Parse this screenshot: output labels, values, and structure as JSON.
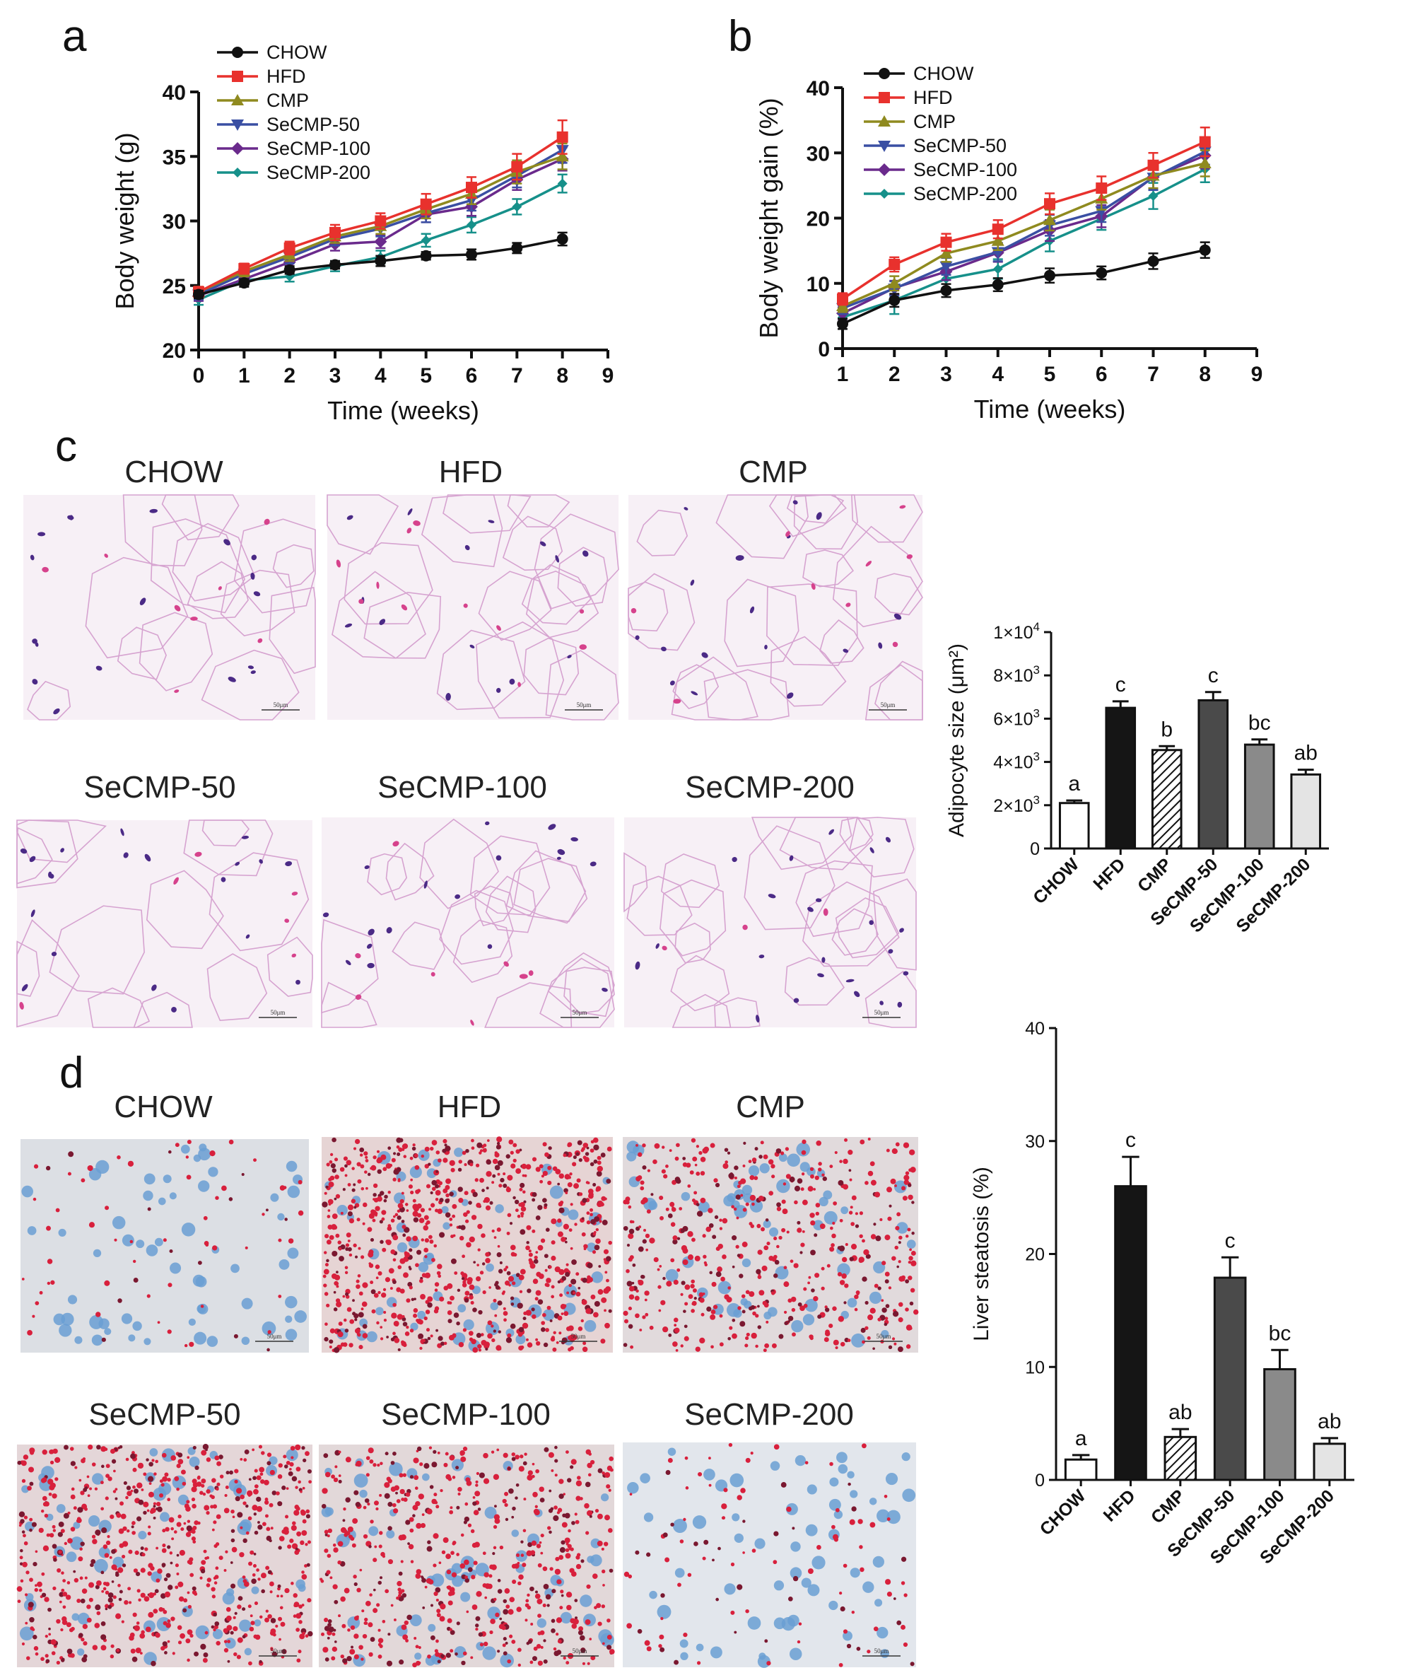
{
  "colors": {
    "CHOW": "#111111",
    "HFD": "#e8312d",
    "CMP": "#8f8a1f",
    "SeCMP-50": "#3a4fa3",
    "SeCMP-100": "#6a2a8c",
    "SeCMP-200": "#16908a"
  },
  "panels": {
    "a": "a",
    "b": "b",
    "c": "c",
    "d": "d"
  },
  "micro_c": {
    "labels": [
      "CHOW",
      "HFD",
      "CMP",
      "SeCMP-50",
      "SeCMP-100",
      "SeCMP-200"
    ],
    "scale_text": "50μm"
  },
  "micro_d": {
    "labels": [
      "CHOW",
      "HFD",
      "CMP",
      "SeCMP-50",
      "SeCMP-100",
      "SeCMP-200"
    ],
    "scale_text": "50μm"
  },
  "chart_data": [
    {
      "id": "a",
      "type": "line",
      "ylabel": "Body weight (g)",
      "xlabel": "Time (weeks)",
      "xlim": [
        0,
        9
      ],
      "ylim": [
        20,
        40
      ],
      "xticks": [
        "0",
        "1",
        "2",
        "3",
        "4",
        "5",
        "6",
        "7",
        "8",
        "9"
      ],
      "yticks": [
        "20",
        "25",
        "30",
        "35",
        "40"
      ],
      "x": [
        0,
        1,
        2,
        3,
        4,
        5,
        6,
        7,
        8
      ],
      "legend_position": "top-left",
      "series": [
        {
          "name": "CHOW",
          "marker": "circle",
          "values": [
            24.3,
            25.2,
            26.2,
            26.6,
            26.9,
            27.3,
            27.4,
            27.9,
            28.6
          ],
          "errors": [
            0.3,
            0.3,
            0.3,
            0.3,
            0.4,
            0.3,
            0.4,
            0.4,
            0.5
          ]
        },
        {
          "name": "HFD",
          "marker": "square",
          "values": [
            24.5,
            26.3,
            27.9,
            29.1,
            30.0,
            31.3,
            32.6,
            34.2,
            36.5
          ],
          "errors": [
            0.4,
            0.4,
            0.5,
            0.6,
            0.6,
            0.8,
            0.8,
            1.0,
            1.3
          ]
        },
        {
          "name": "CMP",
          "marker": "triangle-up",
          "values": [
            24.5,
            26.1,
            27.4,
            28.8,
            29.6,
            30.9,
            32.1,
            33.8,
            35.0
          ],
          "errors": [
            0.4,
            0.4,
            0.5,
            0.5,
            0.6,
            0.7,
            0.8,
            0.9,
            1.0
          ]
        },
        {
          "name": "SeCMP-50",
          "marker": "triangle-down",
          "values": [
            24.3,
            25.9,
            27.2,
            28.6,
            29.4,
            30.6,
            31.6,
            33.5,
            35.5
          ],
          "errors": [
            0.4,
            0.4,
            0.5,
            0.5,
            0.6,
            0.7,
            0.8,
            0.9,
            1.0
          ]
        },
        {
          "name": "SeCMP-100",
          "marker": "diamond",
          "values": [
            24.2,
            25.5,
            26.8,
            28.2,
            28.4,
            30.5,
            31.1,
            33.2,
            34.8
          ],
          "errors": [
            0.4,
            0.4,
            0.5,
            0.5,
            0.5,
            0.6,
            0.7,
            0.8,
            0.9
          ]
        },
        {
          "name": "SeCMP-200",
          "marker": "diamond-small",
          "values": [
            23.9,
            25.4,
            25.7,
            26.5,
            27.2,
            28.5,
            29.7,
            31.1,
            32.9
          ],
          "errors": [
            0.4,
            0.3,
            0.4,
            0.4,
            0.5,
            0.5,
            0.6,
            0.6,
            0.7
          ]
        }
      ]
    },
    {
      "id": "b",
      "type": "line",
      "ylabel": "Body weight gain (%)",
      "xlabel": "Time (weeks)",
      "xlim": [
        1,
        9
      ],
      "ylim": [
        0,
        40
      ],
      "xticks": [
        "1",
        "2",
        "3",
        "4",
        "5",
        "6",
        "7",
        "8",
        "9"
      ],
      "yticks": [
        "0",
        "10",
        "20",
        "30",
        "40"
      ],
      "x": [
        1,
        2,
        3,
        4,
        5,
        6,
        7,
        8
      ],
      "legend_position": "top-left",
      "series": [
        {
          "name": "CHOW",
          "marker": "circle",
          "values": [
            3.8,
            7.4,
            8.9,
            9.8,
            11.2,
            11.6,
            13.4,
            15.1
          ],
          "errors": [
            0.8,
            1.0,
            1.0,
            1.0,
            1.1,
            1.0,
            1.2,
            1.2
          ]
        },
        {
          "name": "HFD",
          "marker": "square",
          "values": [
            7.6,
            12.9,
            16.3,
            18.3,
            22.2,
            24.6,
            28.1,
            31.7
          ],
          "errors": [
            0.9,
            1.1,
            1.3,
            1.4,
            1.6,
            1.8,
            1.9,
            2.2
          ]
        },
        {
          "name": "CMP",
          "marker": "triangle-up",
          "values": [
            6.5,
            10.0,
            14.6,
            16.5,
            19.7,
            23.0,
            26.5,
            28.4
          ],
          "errors": [
            0.9,
            1.1,
            1.3,
            1.4,
            1.6,
            1.7,
            1.9,
            2.0
          ]
        },
        {
          "name": "SeCMP-50",
          "marker": "triangle-down",
          "values": [
            6.2,
            9.2,
            12.6,
            14.8,
            18.9,
            21.1,
            26.2,
            30.2
          ],
          "errors": [
            0.9,
            1.1,
            1.3,
            1.4,
            1.6,
            1.7,
            1.9,
            2.0
          ]
        },
        {
          "name": "SeCMP-100",
          "marker": "diamond",
          "values": [
            5.4,
            9.3,
            11.8,
            14.7,
            18.1,
            20.3,
            26.3,
            29.6
          ],
          "errors": [
            0.9,
            1.1,
            1.3,
            1.4,
            1.6,
            1.7,
            1.9,
            2.0
          ]
        },
        {
          "name": "SeCMP-200",
          "marker": "diamond-small",
          "values": [
            4.8,
            7.4,
            10.7,
            12.2,
            16.5,
            19.9,
            23.4,
            27.5
          ],
          "errors": [
            1.2,
            2.1,
            1.4,
            1.5,
            1.6,
            1.7,
            2.0,
            2.0
          ]
        }
      ]
    },
    {
      "id": "c",
      "type": "bar",
      "ylabel": "Adipocyte size (μm²)",
      "categories": [
        "CHOW",
        "HFD",
        "CMP",
        "SeCMP-50",
        "SeCMP-100",
        "SeCMP-200"
      ],
      "ylim": [
        0,
        10000
      ],
      "yticks": [
        {
          "value": 0,
          "base": "0",
          "exp": ""
        },
        {
          "value": 2000,
          "base": "2×10",
          "exp": "3"
        },
        {
          "value": 4000,
          "base": "4×10",
          "exp": "3"
        },
        {
          "value": 6000,
          "base": "6×10",
          "exp": "3"
        },
        {
          "value": 8000,
          "base": "8×10",
          "exp": "3"
        },
        {
          "value": 10000,
          "base": "1×10",
          "exp": "4"
        }
      ],
      "values": [
        2100,
        6500,
        4550,
        6850,
        4800,
        3420
      ],
      "errors": [
        120,
        300,
        180,
        380,
        240,
        220
      ],
      "letters": [
        "a",
        "c",
        "b",
        "c",
        "bc",
        "ab"
      ],
      "fills": [
        "#ffffff",
        "#151515",
        "hatch",
        "#4a4a4a",
        "#8a8a8a",
        "#e4e4e4"
      ]
    },
    {
      "id": "d",
      "type": "bar",
      "ylabel": "Liver steatosis (%)",
      "categories": [
        "CHOW",
        "HFD",
        "CMP",
        "SeCMP-50",
        "SeCMP-100",
        "SeCMP-200"
      ],
      "ylim": [
        0,
        40
      ],
      "yticks": [
        {
          "value": 0,
          "base": "0",
          "exp": ""
        },
        {
          "value": 10,
          "base": "10",
          "exp": ""
        },
        {
          "value": 20,
          "base": "20",
          "exp": ""
        },
        {
          "value": 30,
          "base": "30",
          "exp": ""
        },
        {
          "value": 40,
          "base": "40",
          "exp": ""
        }
      ],
      "values": [
        1.8,
        26.0,
        3.8,
        17.9,
        9.8,
        3.2
      ],
      "errors": [
        0.4,
        2.6,
        0.7,
        1.8,
        1.7,
        0.5
      ],
      "letters": [
        "a",
        "c",
        "ab",
        "c",
        "bc",
        "ab"
      ],
      "fills": [
        "#ffffff",
        "#151515",
        "hatch",
        "#4a4a4a",
        "#8a8a8a",
        "#e4e4e4"
      ]
    }
  ]
}
